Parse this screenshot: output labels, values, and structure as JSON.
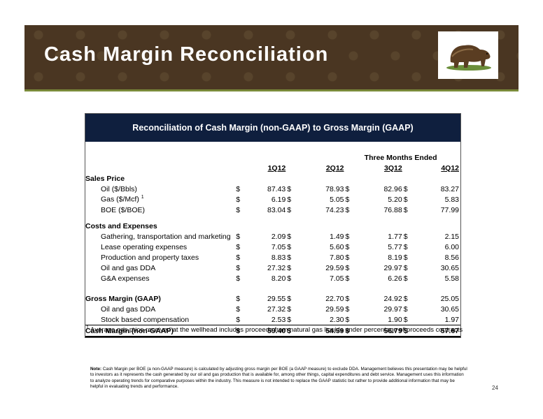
{
  "slide": {
    "title": "Cash Margin Reconciliation",
    "page_number": "24",
    "colors": {
      "banner": "#4a3622",
      "table_header": "#0f1f3e",
      "accent_line": "#7a8a3a"
    }
  },
  "table": {
    "title": "Reconciliation of Cash Margin (non-GAAP) to Gross Margin (GAAP)",
    "period_header": "Three Months Ended",
    "columns": [
      "1Q12",
      "2Q12",
      "3Q12",
      "4Q12"
    ],
    "sections": {
      "sales": "Sales Price",
      "costs": "Costs and Expenses"
    },
    "rows": {
      "oil": {
        "label": "Oil ($/Bbls)",
        "values": [
          "87.43",
          "78.93",
          "82.96",
          "83.27"
        ]
      },
      "gas": {
        "label": "Gas ($/Mcf)",
        "sup": "1",
        "values": [
          "6.19",
          "5.05",
          "5.20",
          "5.83"
        ]
      },
      "boe": {
        "label": "BOE ($/BOE)",
        "values": [
          "83.04",
          "74.23",
          "76.88",
          "77.99"
        ]
      },
      "gtm": {
        "label": "Gathering, transportation and marketing",
        "values": [
          "2.09",
          "1.49",
          "1.77",
          "2.15"
        ]
      },
      "loe": {
        "label": "Lease operating expenses",
        "values": [
          "7.05",
          "5.60",
          "5.77",
          "6.00"
        ]
      },
      "ppt": {
        "label": "Production and property taxes",
        "values": [
          "8.83",
          "7.80",
          "8.19",
          "8.56"
        ]
      },
      "dda": {
        "label": "Oil and gas DDA",
        "values": [
          "27.32",
          "29.59",
          "29.97",
          "30.65"
        ]
      },
      "ga": {
        "label": "G&A expenses",
        "values": [
          "8.20",
          "7.05",
          "6.26",
          "5.58"
        ]
      },
      "gross": {
        "label": "Gross Margin (GAAP)",
        "values": [
          "29.55",
          "22.70",
          "24.92",
          "25.05"
        ]
      },
      "dda2": {
        "label": "Oil and gas DDA",
        "values": [
          "27.32",
          "29.59",
          "29.97",
          "30.65"
        ]
      },
      "sbc": {
        "label": "Stock based compensation",
        "values": [
          "2.53",
          "2.30",
          "1.90",
          "1.97"
        ]
      },
      "cash": {
        "label": "Cash Margin (non-GAAP)",
        "values": [
          "59.40",
          "54.59",
          "56.79",
          "57.67"
        ]
      }
    },
    "currency": "$"
  },
  "footnote": {
    "marker": "1",
    "text": "Average gas price received at the wellhead includes proceeds from natural gas liquids under percentage of proceeds contracts"
  },
  "note": {
    "label": "Note:",
    "text": "Cash Margin per BOE (a non-GAAP measure) is calculated by adjusting gross margin per BOE (a GAAP measure) to exclude DDA. Management believes this presentation may be helpful to investors as it represents the cash generated by our oil and gas production that is available for, among other things, capital expenditures and debt service. Management uses this information to analyze operating trends for comparative purposes within the industry. This measure is not intended to replace the GAAP statistic but rather to provide additional information that may be helpful in evaluating trends and performance."
  }
}
